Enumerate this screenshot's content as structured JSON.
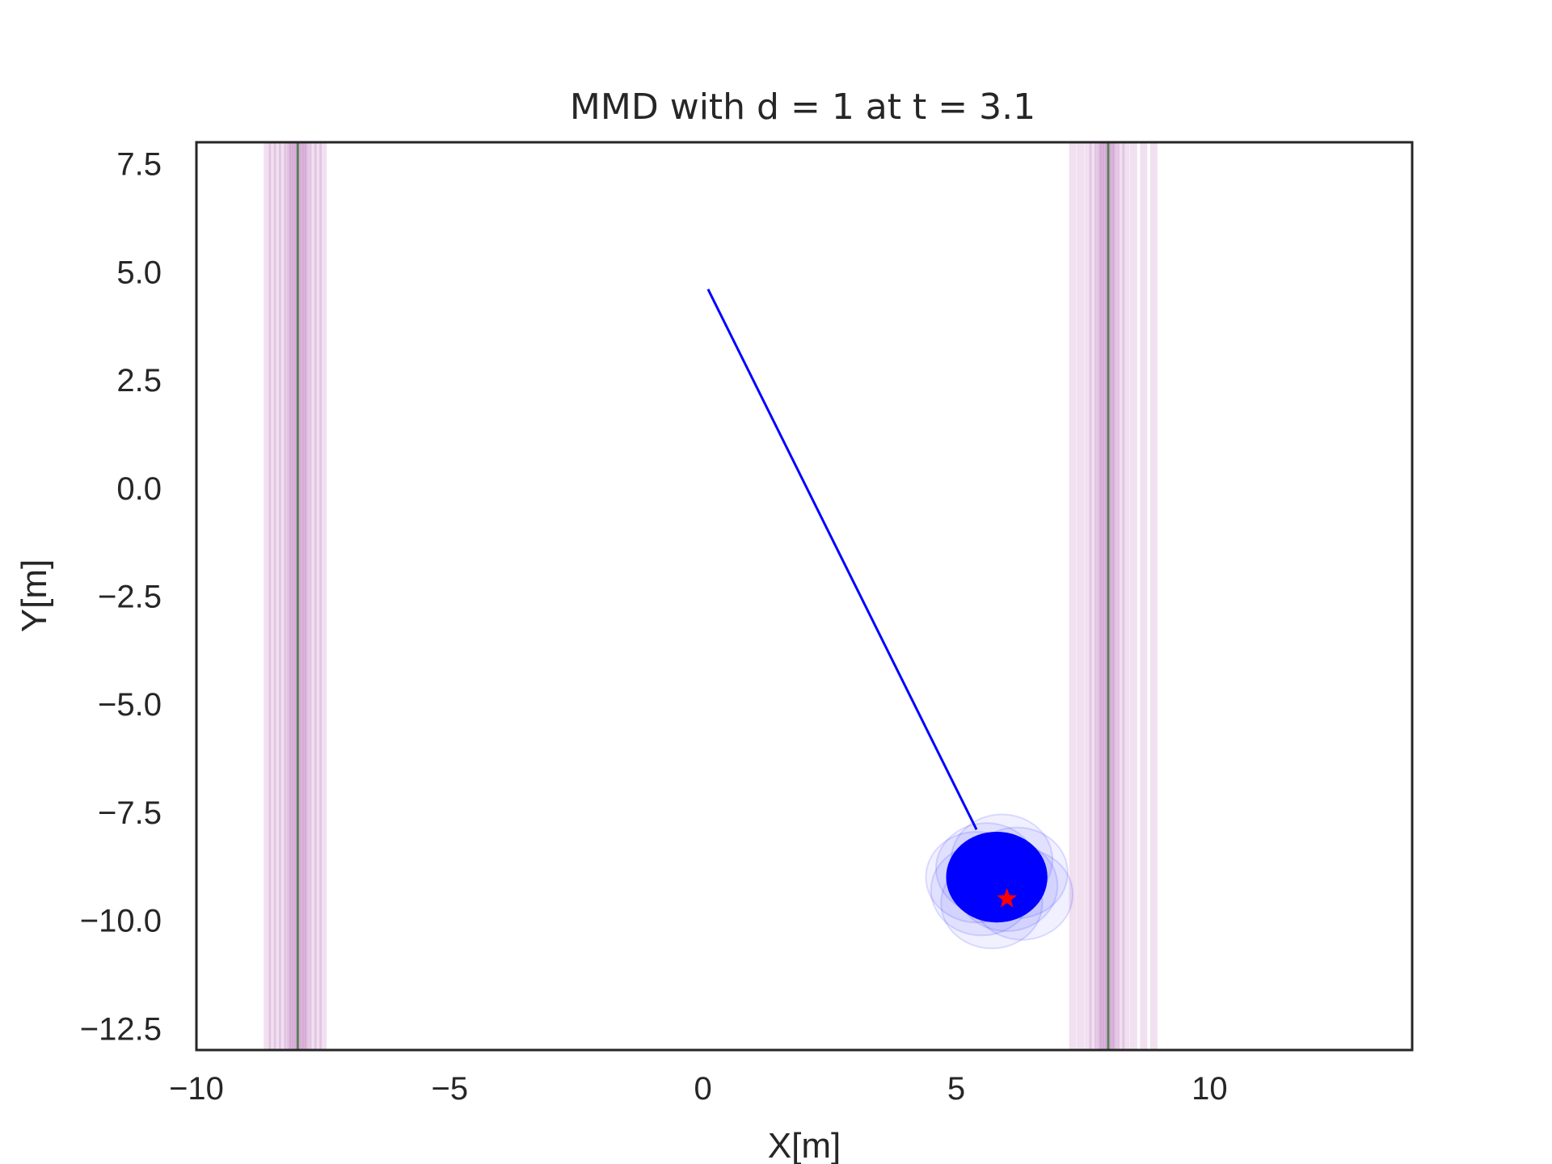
{
  "chart_data": {
    "type": "line",
    "title": "MMD with d = 1 at t = 3.1",
    "xlabel": "X[m]",
    "ylabel": "Y[m]",
    "xlim": [
      -10,
      14
    ],
    "ylim": [
      -13,
      8
    ],
    "xticks": [
      -10,
      -5,
      0,
      5,
      10
    ],
    "xtick_labels": [
      "−10",
      "−5",
      "0",
      "5",
      "10"
    ],
    "yticks": [
      7.5,
      5.0,
      2.5,
      0.0,
      -2.5,
      -5.0,
      -7.5,
      -10.0,
      -12.5
    ],
    "ytick_labels": [
      "7.5",
      "5.0",
      "2.5",
      "0.0",
      "−2.5",
      "−5.0",
      "−7.5",
      "−10.0",
      "−12.5"
    ],
    "grid": false,
    "walls": [
      {
        "x_center": -8.0,
        "sample_x": [
          -8.6,
          -8.5,
          -8.4,
          -8.3,
          -8.2,
          -8.15,
          -8.1,
          -8.05,
          -8.0,
          -7.95,
          -7.9,
          -7.85,
          -7.8,
          -7.7,
          -7.6,
          -7.5
        ],
        "color": "#800080",
        "center_color": "#4d7a4d"
      },
      {
        "x_center": 8.0,
        "sample_x": [
          7.3,
          7.45,
          7.6,
          7.7,
          7.8,
          7.85,
          7.9,
          7.95,
          8.0,
          8.05,
          8.1,
          8.15,
          8.25,
          8.35,
          8.5,
          8.7,
          8.9
        ],
        "color": "#800080",
        "center_color": "#4d7a4d"
      }
    ],
    "trajectory": {
      "x": [
        0.1,
        5.4
      ],
      "y": [
        4.6,
        -7.9
      ],
      "color": "#0000ff"
    },
    "agent": {
      "x": 5.8,
      "y": -9.0,
      "rx": 1.0,
      "ry": 1.05,
      "color": "#0000ff"
    },
    "agent_samples": [
      {
        "x": 5.6,
        "y": -8.8
      },
      {
        "x": 6.0,
        "y": -9.2
      },
      {
        "x": 5.5,
        "y": -9.3
      },
      {
        "x": 6.2,
        "y": -8.9
      },
      {
        "x": 5.7,
        "y": -9.6
      },
      {
        "x": 5.9,
        "y": -8.6
      },
      {
        "x": 6.3,
        "y": -9.4
      },
      {
        "x": 5.4,
        "y": -9.0
      }
    ],
    "goal": {
      "x": 6.0,
      "y": -9.5,
      "color": "#ff0000"
    }
  }
}
